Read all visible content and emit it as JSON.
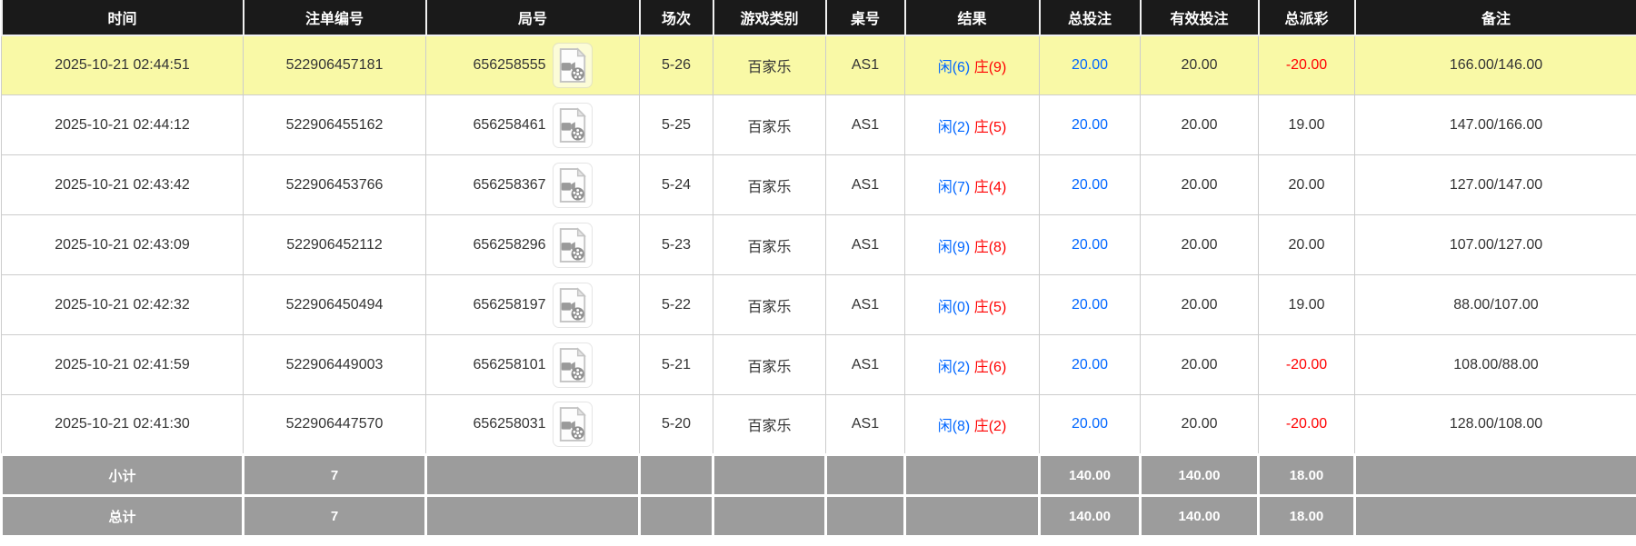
{
  "colors": {
    "header_bg": "#1a1a1a",
    "highlight_row_bg": "#f9f9a6",
    "summary_row_bg": "#9c9c9c",
    "bet_amount_blue": "#0066ff",
    "negative_red": "#ff0000",
    "grid_line": "#cccccc"
  },
  "table": {
    "columns": [
      {
        "key": "time",
        "label": "时间"
      },
      {
        "key": "bet_id",
        "label": "注单编号"
      },
      {
        "key": "round_id",
        "label": "局号"
      },
      {
        "key": "session",
        "label": "场次"
      },
      {
        "key": "game_type",
        "label": "游戏类别"
      },
      {
        "key": "table_no",
        "label": "桌号"
      },
      {
        "key": "result",
        "label": "结果"
      },
      {
        "key": "total_bet",
        "label": "总投注"
      },
      {
        "key": "valid_bet",
        "label": "有效投注"
      },
      {
        "key": "payout",
        "label": "总派彩"
      },
      {
        "key": "remark",
        "label": "备注"
      }
    ],
    "video_icon_name": "video-replay-icon",
    "rows": [
      {
        "time": "2025-10-21 02:44:51",
        "bet_id": "522906457181",
        "round_id": "656258555",
        "session": "5-26",
        "game_type": "百家乐",
        "table_no": "AS1",
        "result_player": "闲(6)",
        "result_banker": "庄(9)",
        "total_bet": "20.00",
        "valid_bet": "20.00",
        "payout": "-20.00",
        "remark": "166.00/146.00",
        "highlighted": true
      },
      {
        "time": "2025-10-21 02:44:12",
        "bet_id": "522906455162",
        "round_id": "656258461",
        "session": "5-25",
        "game_type": "百家乐",
        "table_no": "AS1",
        "result_player": "闲(2)",
        "result_banker": "庄(5)",
        "total_bet": "20.00",
        "valid_bet": "20.00",
        "payout": "19.00",
        "remark": "147.00/166.00",
        "highlighted": false
      },
      {
        "time": "2025-10-21 02:43:42",
        "bet_id": "522906453766",
        "round_id": "656258367",
        "session": "5-24",
        "game_type": "百家乐",
        "table_no": "AS1",
        "result_player": "闲(7)",
        "result_banker": "庄(4)",
        "total_bet": "20.00",
        "valid_bet": "20.00",
        "payout": "20.00",
        "remark": "127.00/147.00",
        "highlighted": false
      },
      {
        "time": "2025-10-21 02:43:09",
        "bet_id": "522906452112",
        "round_id": "656258296",
        "session": "5-23",
        "game_type": "百家乐",
        "table_no": "AS1",
        "result_player": "闲(9)",
        "result_banker": "庄(8)",
        "total_bet": "20.00",
        "valid_bet": "20.00",
        "payout": "20.00",
        "remark": "107.00/127.00",
        "highlighted": false
      },
      {
        "time": "2025-10-21 02:42:32",
        "bet_id": "522906450494",
        "round_id": "656258197",
        "session": "5-22",
        "game_type": "百家乐",
        "table_no": "AS1",
        "result_player": "闲(0)",
        "result_banker": "庄(5)",
        "total_bet": "20.00",
        "valid_bet": "20.00",
        "payout": "19.00",
        "remark": "88.00/107.00",
        "highlighted": false
      },
      {
        "time": "2025-10-21 02:41:59",
        "bet_id": "522906449003",
        "round_id": "656258101",
        "session": "5-21",
        "game_type": "百家乐",
        "table_no": "AS1",
        "result_player": "闲(2)",
        "result_banker": "庄(6)",
        "total_bet": "20.00",
        "valid_bet": "20.00",
        "payout": "-20.00",
        "remark": "108.00/88.00",
        "highlighted": false
      },
      {
        "time": "2025-10-21 02:41:30",
        "bet_id": "522906447570",
        "round_id": "656258031",
        "session": "5-20",
        "game_type": "百家乐",
        "table_no": "AS1",
        "result_player": "闲(8)",
        "result_banker": "庄(2)",
        "total_bet": "20.00",
        "valid_bet": "20.00",
        "payout": "-20.00",
        "remark": "128.00/108.00",
        "highlighted": false
      }
    ],
    "subtotal": {
      "label": "小计",
      "count": "7",
      "total_bet": "140.00",
      "valid_bet": "140.00",
      "payout": "18.00"
    },
    "total": {
      "label": "总计",
      "count": "7",
      "total_bet": "140.00",
      "valid_bet": "140.00",
      "payout": "18.00"
    }
  }
}
